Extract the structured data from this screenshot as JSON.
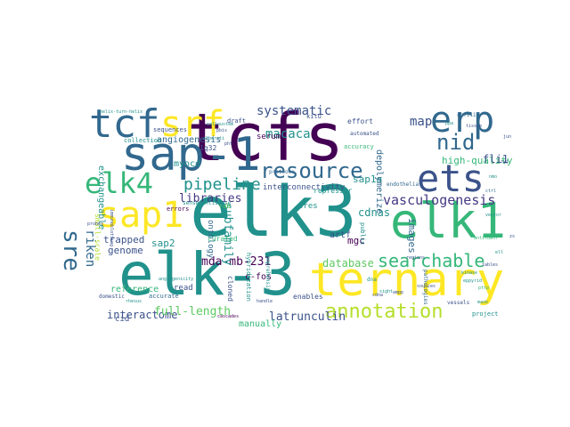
{
  "palette": {
    "dark_purple": "#440154",
    "indigo": "#3b528b",
    "teal": "#21918c",
    "green": "#5ec962",
    "yellow": "#fde725"
  },
  "words": [
    {
      "text": "elk3",
      "color": "#21918c"
    },
    {
      "text": "tcfs",
      "color": "#440154"
    },
    {
      "text": "elk-3",
      "color": "#21918c"
    },
    {
      "text": "ternary",
      "color": "#fde725"
    },
    {
      "text": "sap-1",
      "color": "#31688e"
    },
    {
      "text": "elk1",
      "color": "#35b779"
    },
    {
      "text": "ets",
      "color": "#3b528b"
    },
    {
      "text": "erp",
      "color": "#31688e"
    },
    {
      "text": "tcf",
      "color": "#31688e"
    },
    {
      "text": "srf",
      "color": "#fde725"
    },
    {
      "text": "sap1",
      "color": "#fde725"
    },
    {
      "text": "elk4",
      "color": "#35b779"
    },
    {
      "text": "resource",
      "color": "#31688e"
    },
    {
      "text": "nid",
      "color": "#31688e"
    },
    {
      "text": "annotation",
      "color": "#b5de2b"
    },
    {
      "text": "searchable",
      "color": "#35b779"
    },
    {
      "text": "sre",
      "color": "#31688e"
    },
    {
      "text": "pipeline",
      "color": "#21918c"
    },
    {
      "text": "systematic",
      "color": "#3b528b"
    },
    {
      "text": "vasculogenesis",
      "color": "#443983"
    },
    {
      "text": "latrunculin",
      "color": "#3b528b"
    },
    {
      "text": "interactome",
      "color": "#3b528b"
    },
    {
      "text": "full-length",
      "color": "#5ec962"
    },
    {
      "text": "macaca",
      "color": "#21918c"
    },
    {
      "text": "map",
      "color": "#3b528b"
    },
    {
      "text": "high-quality",
      "color": "#35b779"
    },
    {
      "text": "libraries",
      "color": "#443983"
    },
    {
      "text": "database",
      "color": "#5ec962"
    },
    {
      "text": "mda-mb-231",
      "color": "#440154"
    },
    {
      "text": "fli1",
      "color": "#3b528b"
    },
    {
      "text": "cdnas",
      "color": "#21918c"
    },
    {
      "text": "sap1a",
      "color": "#21918c"
    },
    {
      "text": "riken",
      "color": "#31688e"
    },
    {
      "text": "subfamily",
      "color": "#21918c"
    },
    {
      "text": "images",
      "color": "#31688e"
    },
    {
      "text": "trapped",
      "color": "#3b528b"
    },
    {
      "text": "genome",
      "color": "#3b528b"
    },
    {
      "text": "sap2",
      "color": "#21918c"
    },
    {
      "text": "reference",
      "color": "#35b779"
    },
    {
      "text": "angiogenesis",
      "color": "#31688e"
    },
    {
      "text": "exchangeable",
      "color": "#21918c"
    },
    {
      "text": "depolymerize",
      "color": "#31688e"
    },
    {
      "text": "myocd",
      "color": "#21918c"
    },
    {
      "text": "serum",
      "color": "#440154"
    },
    {
      "text": "interconnectivity",
      "color": "#3b528b"
    },
    {
      "text": "c-fos",
      "color": "#440154"
    },
    {
      "text": "manually",
      "color": "#35b779"
    },
    {
      "text": "ontology",
      "color": "#31688e"
    },
    {
      "text": "small-scale",
      "color": "#b5de2b"
    },
    {
      "text": "read",
      "color": "#3b528b"
    },
    {
      "text": "cid",
      "color": "#3b528b"
    },
    {
      "text": "sres",
      "color": "#21918c"
    },
    {
      "text": "curated",
      "color": "#35b779"
    },
    {
      "text": "enables",
      "color": "#3b528b"
    },
    {
      "text": "repressor",
      "color": "#21918c"
    },
    {
      "text": "artf",
      "color": "#3b528b"
    },
    {
      "text": "mgc",
      "color": "#440154"
    },
    {
      "text": "accurate",
      "color": "#31688e"
    },
    {
      "text": "cloned",
      "color": "#3b528b"
    },
    {
      "text": "effort",
      "color": "#3b528b"
    },
    {
      "text": "1q32",
      "color": "#3b528b"
    },
    {
      "text": "sequences",
      "color": "#3b528b"
    },
    {
      "text": "draft",
      "color": "#3b528b"
    },
    {
      "text": "collection",
      "color": "#21918c"
    },
    {
      "text": "kitu",
      "color": "#3b528b"
    },
    {
      "text": "public",
      "color": "#21918c"
    },
    {
      "text": "endothelial",
      "color": "#31688e"
    },
    {
      "text": "accuracy",
      "color": "#35b779"
    },
    {
      "text": "project",
      "color": "#21918c"
    },
    {
      "text": "vessels",
      "color": "#3b528b"
    },
    {
      "text": "cofilin",
      "color": "#31688e"
    },
    {
      "text": "automated",
      "color": "#3b528b"
    },
    {
      "text": "proteome",
      "color": "#31688e"
    },
    {
      "text": "hybridization",
      "color": "#21918c"
    },
    {
      "text": "comprehensive",
      "color": "#21918c"
    },
    {
      "text": "domestic",
      "color": "#3b528b"
    },
    {
      "text": "rhesus",
      "color": "#21918c"
    },
    {
      "text": "cascades",
      "color": "#440154"
    },
    {
      "text": "sense-antisense",
      "color": "#21918c"
    },
    {
      "text": "helix-turn-helix",
      "color": "#21918c"
    },
    {
      "text": "tissue",
      "color": "#3b528b"
    },
    {
      "text": "pathologies",
      "color": "#31688e"
    },
    {
      "text": "rab",
      "color": "#5ec962"
    },
    {
      "text": "errors",
      "color": "#440154"
    },
    {
      "text": "dna",
      "color": "#21918c"
    },
    {
      "text": "pbis",
      "color": "#3b528b"
    },
    {
      "text": "cdna",
      "color": "#3b528b"
    },
    {
      "text": "regions",
      "color": "#3b528b"
    },
    {
      "text": "pttp",
      "color": "#35b779"
    },
    {
      "text": "ppa",
      "color": "#21918c"
    },
    {
      "text": "calloustem",
      "color": "#21918c"
    },
    {
      "text": "ampp",
      "color": "#3b528b"
    },
    {
      "text": "albersti",
      "color": "#21918c"
    },
    {
      "text": "sources",
      "color": "#3b528b"
    },
    {
      "text": "handle",
      "color": "#3b528b"
    },
    {
      "text": "tables",
      "color": "#3b528b"
    },
    {
      "text": "sight",
      "color": "#21918c"
    },
    {
      "text": "antitumor",
      "color": "#35b779"
    },
    {
      "text": "kinase",
      "color": "#21918c"
    },
    {
      "text": "eppyrid",
      "color": "#21918c"
    },
    {
      "text": "vector",
      "color": "#21918c"
    },
    {
      "text": "nmo",
      "color": "#21918c"
    },
    {
      "text": "jun",
      "color": "#3b528b"
    },
    {
      "text": "ell",
      "color": "#21918c"
    },
    {
      "text": "zs",
      "color": "#3b528b"
    },
    {
      "text": "phf",
      "color": "#3b528b"
    },
    {
      "text": "ryj",
      "color": "#3b528b"
    },
    {
      "text": "ctrl",
      "color": "#31688e"
    },
    {
      "text": "mask",
      "color": "#21918c"
    },
    {
      "text": "probes",
      "color": "#3b528b"
    },
    {
      "text": "immunoblotting",
      "color": "#3b528b"
    },
    {
      "text": "angiogenicity",
      "color": "#21918c"
    }
  ]
}
